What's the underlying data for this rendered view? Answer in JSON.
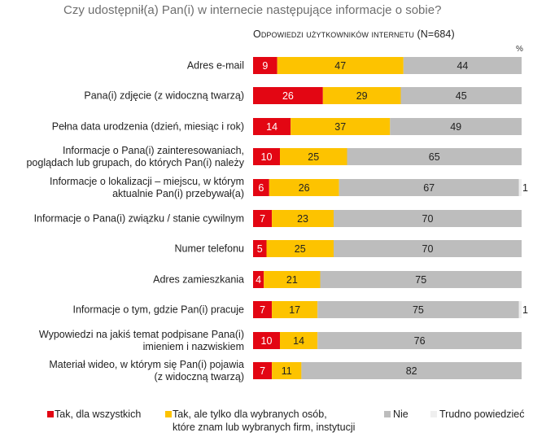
{
  "chart_data": {
    "type": "bar",
    "stacked": true,
    "orientation": "horizontal",
    "title": "Czy udostępnił(a) Pan(i) w internecie następujące informacje o sobie?",
    "subtitle": "Odpowiedzi użytkowników internetu (N=684)",
    "unit": "%",
    "xlim": [
      0,
      100
    ],
    "categories": [
      [
        "Adres e-mail"
      ],
      [
        "Pana(i) zdjęcie (z widoczną twarzą)"
      ],
      [
        "Pełna data urodzenia (dzień, miesiąc i rok)"
      ],
      [
        "Informacje o Pana(i) zainteresowaniach,",
        "poglądach lub grupach, do których Pan(i) należy"
      ],
      [
        "Informacje o lokalizacji – miejscu, w którym",
        "aktualnie Pan(i) przebywał(a)"
      ],
      [
        "Informacje o Pana(i) związku / stanie cywilnym"
      ],
      [
        "Numer telefonu"
      ],
      [
        "Adres zamieszkania"
      ],
      [
        "Informacje o tym, gdzie Pan(i) pracuje"
      ],
      [
        "Wypowiedzi na jakiś temat podpisane Pana(i)",
        "imieniem i nazwiskiem"
      ],
      [
        "Materiał wideo, w którym się Pan(i) pojawia",
        "(z widoczną twarzą)"
      ]
    ],
    "series": [
      {
        "name": "Tak, dla wszystkich",
        "color": "#e30613",
        "values": [
          9,
          26,
          14,
          10,
          6,
          7,
          5,
          4,
          7,
          10,
          7
        ]
      },
      {
        "name": "Tak, ale tylko dla wybranych osób, które znam lub wybranych firm, instytucji",
        "color": "#fdc300",
        "values": [
          47,
          29,
          37,
          25,
          26,
          23,
          25,
          21,
          17,
          14,
          11
        ]
      },
      {
        "name": "Nie",
        "color": "#bdbdbd",
        "values": [
          44,
          45,
          49,
          65,
          67,
          70,
          70,
          75,
          75,
          76,
          82
        ]
      },
      {
        "name": "Trudno powiedzieć",
        "color": "#efefef",
        "values": [
          0,
          0,
          0,
          0,
          1,
          0,
          0,
          0,
          1,
          0,
          0
        ]
      }
    ],
    "legend": [
      {
        "lines": [
          "Tak, dla wszystkich"
        ]
      },
      {
        "lines": [
          "Tak, ale tylko dla wybranych osób,",
          "które znam lub wybranych firm, instytucji"
        ]
      },
      {
        "lines": [
          "Nie"
        ]
      },
      {
        "lines": [
          "Trudno powiedzieć"
        ]
      }
    ],
    "legend_position": "bottom"
  }
}
